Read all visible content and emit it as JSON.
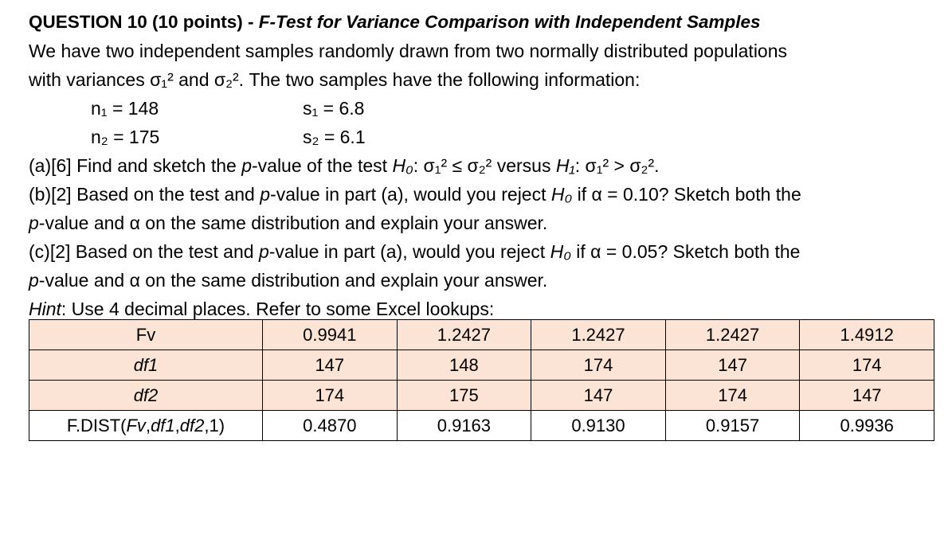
{
  "question": {
    "title_lead": "QUESTION 10 (10 points) - ",
    "title_topic": "F-Test for Variance Comparison with Independent Samples",
    "intro_line1": "We have two independent samples randomly drawn from two normally distributed populations",
    "intro_line2": "with variances σ₁² and σ₂². The two samples have the following information:",
    "n1": "n₁ = 148",
    "s1": "s₁ = 6.8",
    "n2": "n₂ = 175",
    "s2": "s₂ = 6.1"
  },
  "parts": {
    "a_prefix": "(a)[6] Find and sketch the ",
    "a_pvalue": "p",
    "a_mid": "-value of the test ",
    "a_h0": "H₀",
    "a_h0_cond": ": σ₁² ≤ σ₂² versus ",
    "a_h1": "H₁",
    "a_h1_cond": ": σ₁² > σ₂².",
    "b_line1_prefix": "(b)[2] Based on the test and ",
    "b_line1_p": "p",
    "b_line1_mid": "-value in part (a), would you reject ",
    "b_line1_h0": "H₀",
    "b_line1_suffix": " if α = 0.10? Sketch both the",
    "b_line2_p": "p",
    "b_line2_rest": "-value and α on the same distribution and explain your answer.",
    "c_line1_prefix": "(c)[2] Based on the test and ",
    "c_line1_p": "p",
    "c_line1_mid": "-value in part (a), would you reject ",
    "c_line1_h0": "H₀",
    "c_line1_suffix": " if α = 0.05? Sketch both the",
    "c_line2_p": "p",
    "c_line2_rest": "-value and α on the same distribution and explain your answer.",
    "hint_label": "Hint",
    "hint_text": ": Use 4 decimal places. Refer to some Excel lookups:"
  },
  "table": {
    "rows": [
      {
        "label": "Fv",
        "label_italic": false,
        "shaded": true,
        "cells": [
          "0.9941",
          "1.2427",
          "1.2427",
          "1.2427",
          "1.4912"
        ]
      },
      {
        "label": "df1",
        "label_italic": true,
        "shaded": true,
        "cells": [
          "147",
          "148",
          "174",
          "147",
          "174"
        ]
      },
      {
        "label": "df2",
        "label_italic": true,
        "shaded": true,
        "cells": [
          "174",
          "175",
          "147",
          "174",
          "147"
        ]
      },
      {
        "label": "F.DIST(Fv,df1,df2,1)",
        "label_italic": false,
        "shaded": false,
        "cells": [
          "0.4870",
          "0.9163",
          "0.9130",
          "0.9157",
          "0.9936"
        ]
      }
    ],
    "shade_color": "#fbe3d5"
  }
}
